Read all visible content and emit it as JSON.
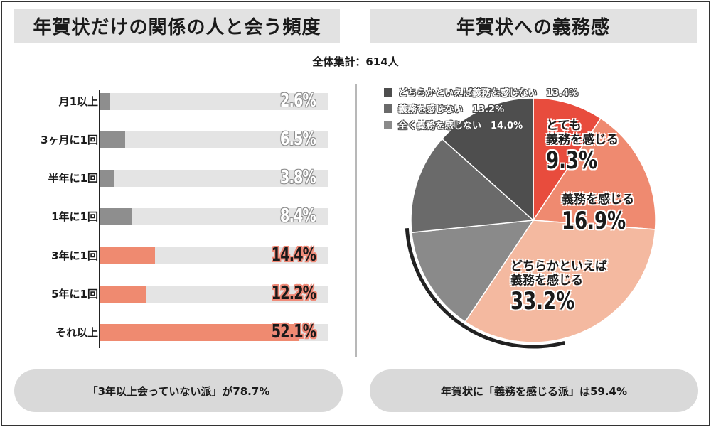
{
  "left_title": "年賀状だけの関係の人と会う頻度",
  "right_title": "年賀状への義務感",
  "total_label": "全体集計：614人",
  "left_footer": "「3年以上会っていない派」が78.7%",
  "right_footer": "年賀状に「義務を感じる派」は59.4%",
  "colors": {
    "bar_gray": "#8e8e8e",
    "bar_red": "#ef8a70",
    "bar_bg": "#e4e4e4",
    "slice_strong": "#e84c3d",
    "slice_feel": "#ef8a70",
    "slice_somewhat": "#f4b9a0",
    "slice_none_all": "#8a8a8a",
    "slice_none": "#6a6a6a",
    "slice_somewhat_none": "#4e4e4e"
  },
  "chart_data": [
    {
      "type": "bar",
      "orientation": "horizontal",
      "title": "年賀状だけの関係の人と会う頻度",
      "categories": [
        "月1以上",
        "3ヶ月に1回",
        "半年に1回",
        "1年に1回",
        "3年に1回",
        "5年に1回",
        "それ以上"
      ],
      "values": [
        2.6,
        6.5,
        3.8,
        8.4,
        14.4,
        12.2,
        52.1
      ],
      "value_labels": [
        "2.6%",
        "6.5%",
        "3.8%",
        "8.4%",
        "14.4%",
        "12.2%",
        "52.1%"
      ],
      "unit": "%",
      "xlim": [
        0,
        60
      ],
      "highlight": [
        false,
        false,
        false,
        false,
        true,
        true,
        true
      ]
    },
    {
      "type": "pie",
      "title": "年賀状への義務感",
      "labels": [
        "とても義務を感じる",
        "義務を感じる",
        "どちらかといえば義務を感じる",
        "全く義務を感じない",
        "義務を感じない",
        "どちらかといえば義務を感じない"
      ],
      "values": [
        9.3,
        16.9,
        33.2,
        14.0,
        13.2,
        13.4
      ],
      "value_labels": [
        "9.3%",
        "16.9%",
        "33.2%",
        "14.0%",
        "13.2%",
        "13.4%"
      ],
      "legend": [
        {
          "label": "どちらかといえば義務を感じない",
          "value": "13.4%"
        },
        {
          "label": "義務を感じない",
          "value": "13.2%"
        },
        {
          "label": "全く義務を感じない",
          "value": "14.0%"
        }
      ],
      "legend_placement": "top-left"
    }
  ]
}
